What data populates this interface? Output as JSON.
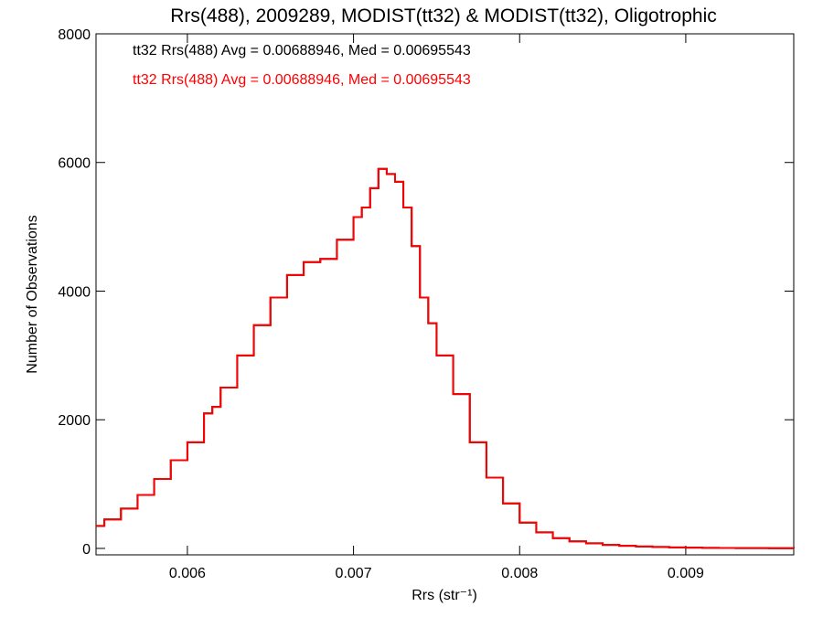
{
  "chart_data": {
    "type": "line",
    "title": "Rrs(488), 2009289, MODIST(tt32) & MODIST(tt32), Oligotrophic",
    "xlabel": "Rrs (str⁻¹)",
    "ylabel": "Number of Observations",
    "xlim": [
      0.00545,
      0.00965
    ],
    "ylim": [
      -100,
      8000
    ],
    "xticks": [
      0.006,
      0.007,
      0.008,
      0.009
    ],
    "xtick_labels": [
      "0.006",
      "0.007",
      "0.008",
      "0.009"
    ],
    "yticks": [
      0,
      2000,
      4000,
      6000,
      8000
    ],
    "ytick_labels": [
      "0",
      "2000",
      "4000",
      "6000",
      "8000"
    ],
    "grid": false,
    "legend_position": "top-left",
    "series": [
      {
        "name": "tt32 Rrs(488) Avg = 0.00688946, Med = 0.00695543",
        "color": "#000000",
        "x": [
          0.00545,
          0.0055,
          0.0056,
          0.0057,
          0.0058,
          0.0059,
          0.006,
          0.0061,
          0.00615,
          0.0062,
          0.0063,
          0.0064,
          0.0065,
          0.0066,
          0.0067,
          0.0068,
          0.0069,
          0.007,
          0.00705,
          0.0071,
          0.00715,
          0.0072,
          0.00725,
          0.0073,
          0.00735,
          0.0074,
          0.00745,
          0.0075,
          0.0076,
          0.0077,
          0.0078,
          0.0079,
          0.008,
          0.0081,
          0.0082,
          0.0083,
          0.0084,
          0.0085,
          0.0086,
          0.0087,
          0.0088,
          0.0089,
          0.009,
          0.0091,
          0.0092,
          0.0093,
          0.0094,
          0.0095,
          0.00965
        ],
        "y": [
          350,
          450,
          620,
          830,
          1080,
          1370,
          1650,
          2100,
          2200,
          2500,
          3000,
          3470,
          3900,
          4250,
          4450,
          4500,
          4800,
          5150,
          5300,
          5600,
          5900,
          5820,
          5700,
          5300,
          4700,
          3900,
          3500,
          3000,
          2400,
          1650,
          1100,
          700,
          400,
          250,
          160,
          110,
          80,
          55,
          40,
          30,
          22,
          16,
          12,
          9,
          7,
          5,
          4,
          3,
          2
        ]
      },
      {
        "name": "tt32 Rrs(488) Avg = 0.00688946, Med = 0.00695543",
        "color": "#ff0000",
        "x": [
          0.00545,
          0.0055,
          0.0056,
          0.0057,
          0.0058,
          0.0059,
          0.006,
          0.0061,
          0.00615,
          0.0062,
          0.0063,
          0.0064,
          0.0065,
          0.0066,
          0.0067,
          0.0068,
          0.0069,
          0.007,
          0.00705,
          0.0071,
          0.00715,
          0.0072,
          0.00725,
          0.0073,
          0.00735,
          0.0074,
          0.00745,
          0.0075,
          0.0076,
          0.0077,
          0.0078,
          0.0079,
          0.008,
          0.0081,
          0.0082,
          0.0083,
          0.0084,
          0.0085,
          0.0086,
          0.0087,
          0.0088,
          0.0089,
          0.009,
          0.0091,
          0.0092,
          0.0093,
          0.0094,
          0.0095,
          0.00965
        ],
        "y": [
          350,
          450,
          620,
          830,
          1080,
          1370,
          1650,
          2100,
          2200,
          2500,
          3000,
          3470,
          3900,
          4250,
          4450,
          4500,
          4800,
          5150,
          5300,
          5600,
          5900,
          5820,
          5700,
          5300,
          4700,
          3900,
          3500,
          3000,
          2400,
          1650,
          1100,
          700,
          400,
          250,
          160,
          110,
          80,
          55,
          40,
          30,
          22,
          16,
          12,
          9,
          7,
          5,
          4,
          3,
          2
        ]
      }
    ]
  }
}
